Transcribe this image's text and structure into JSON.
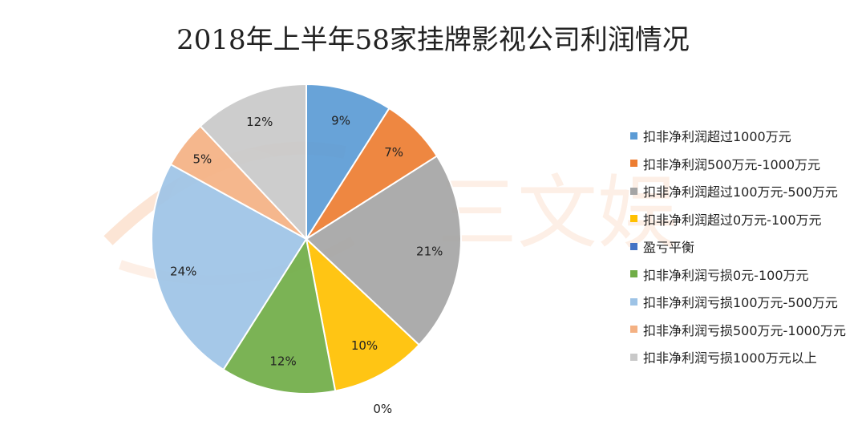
{
  "chart_data": {
    "type": "pie",
    "title": "2018年上半年58家挂牌影视公司利润情况",
    "categories": [
      "扣非净利润超过1000万元",
      "扣非净利润500万元-1000万元",
      "扣非净利润超过100万元-500万元",
      "扣非净利润超过0万元-100万元",
      "盈亏平衡",
      "扣非净利润亏损0元-100万元",
      "扣非净利润亏损100万元-500万元",
      "扣非净利润亏损500万元-1000万元",
      "扣非净利润亏损1000万元以上"
    ],
    "values": [
      9,
      7,
      21,
      10,
      0,
      12,
      24,
      5,
      12
    ],
    "labels": [
      "9%",
      "7%",
      "21%",
      "10%",
      "0%",
      "12%",
      "24%",
      "5%",
      "12%"
    ],
    "colors": [
      "#5b9bd5",
      "#ed7d31",
      "#a5a5a5",
      "#ffc000",
      "#4472c4",
      "#70ad47",
      "#9dc3e6",
      "#f4b183",
      "#c9c9c9"
    ],
    "legend_position": "right"
  },
  "watermark": "三文娱"
}
